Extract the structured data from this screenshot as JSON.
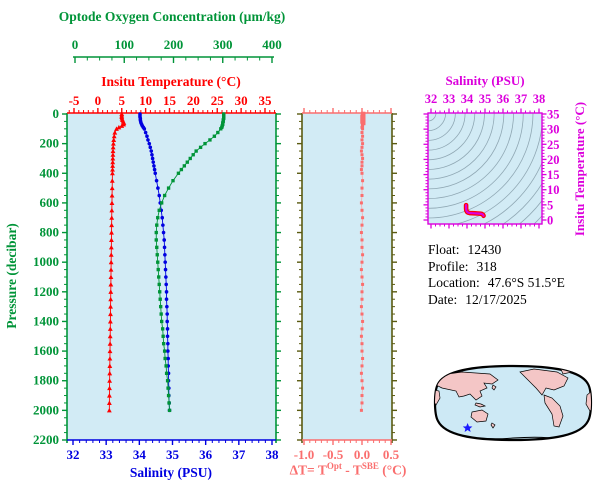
{
  "info": {
    "float_label": "Float:",
    "float_value": "12430",
    "profile_label": "Profile:",
    "profile_value": "318",
    "location_label": "Location:",
    "location_value": "47.6°S  51.5°E",
    "date_label": "Date:",
    "date_value": "12/17/2025"
  },
  "colors": {
    "oxygen": "#009438",
    "temperature": "#FF0000",
    "salinity": "#0000E0",
    "pressure": "#009438",
    "delta": "#FA6E6E",
    "delta_line": "#FCA9A9",
    "olive": "#5A5A10",
    "magenta": "#DC00DC",
    "contour": "#90A8B4",
    "plot_bg": "#D2EBF5",
    "land": "#F4C6C6",
    "ocean": "#CDE9F5",
    "map_outline": "#000000",
    "star": "#1A1AFF",
    "info_text": "#000000"
  },
  "chart_data": [
    {
      "id": "profile-plot",
      "type": "line",
      "orientation": "depth-profile",
      "y_axis": {
        "label": "Pressure (decibar)",
        "range": [
          0,
          2200
        ],
        "major": 200,
        "minor": 50
      },
      "x_axes": [
        {
          "name": "oxygen",
          "label": "Optode Oxygen Concentration (µm/kg)",
          "range": [
            0,
            400
          ],
          "major": 100,
          "minor": 25
        },
        {
          "name": "temperature",
          "label": "Insitu Temperature (°C)",
          "range": [
            -5,
            35
          ],
          "major": 5,
          "minor": 1
        },
        {
          "name": "salinity",
          "label": "Salinity (PSU)",
          "range": [
            32,
            38
          ],
          "major": 1,
          "minor": 0.2
        }
      ],
      "pressure": [
        0,
        10,
        20,
        30,
        40,
        50,
        60,
        70,
        80,
        90,
        100,
        125,
        150,
        175,
        200,
        225,
        250,
        275,
        300,
        325,
        350,
        375,
        400,
        450,
        500,
        550,
        600,
        650,
        700,
        750,
        800,
        850,
        900,
        950,
        1000,
        1050,
        1100,
        1150,
        1200,
        1250,
        1300,
        1350,
        1400,
        1450,
        1500,
        1550,
        1600,
        1650,
        1700,
        1750,
        1800,
        1850,
        1900,
        1950,
        2000
      ],
      "series": [
        {
          "name": "temperature",
          "axis": "temperature",
          "marker": "triangle",
          "values": [
            5.0,
            5.0,
            5.0,
            5.05,
            5.15,
            5.3,
            5.45,
            5.4,
            5.0,
            4.4,
            3.9,
            3.55,
            3.42,
            3.32,
            3.25,
            3.2,
            3.17,
            3.15,
            3.13,
            3.11,
            3.09,
            3.07,
            3.05,
            3.02,
            3.0,
            2.97,
            2.95,
            2.92,
            2.9,
            2.88,
            2.86,
            2.84,
            2.82,
            2.8,
            2.78,
            2.76,
            2.74,
            2.72,
            2.7,
            2.68,
            2.66,
            2.64,
            2.62,
            2.6,
            2.58,
            2.56,
            2.54,
            2.52,
            2.5,
            2.48,
            2.46,
            2.44,
            2.42,
            2.41,
            2.4
          ]
        },
        {
          "name": "salinity",
          "axis": "salinity",
          "marker": "circle",
          "values": [
            34.02,
            34.02,
            34.02,
            34.03,
            34.03,
            34.04,
            34.05,
            34.07,
            34.09,
            34.12,
            34.15,
            34.19,
            34.23,
            34.26,
            34.3,
            34.33,
            34.36,
            34.38,
            34.4,
            34.42,
            34.44,
            34.46,
            34.48,
            34.52,
            34.56,
            34.6,
            34.63,
            34.66,
            34.69,
            34.71,
            34.73,
            34.75,
            34.76,
            34.77,
            34.78,
            34.79,
            34.8,
            34.81,
            34.82,
            34.82,
            34.83,
            34.84,
            34.84,
            34.85,
            34.85,
            34.86,
            34.86,
            34.87,
            34.87,
            34.88,
            34.88,
            34.89,
            34.89,
            34.9,
            34.91
          ]
        },
        {
          "name": "oxygen",
          "axis": "oxygen",
          "marker": "square",
          "values": [
            302,
            302,
            302,
            302,
            301,
            301,
            300,
            300,
            299,
            298,
            296,
            290,
            283,
            274,
            264,
            255,
            246,
            240,
            234,
            228,
            222,
            216,
            210,
            199,
            190,
            182,
            176,
            171,
            168,
            166,
            165,
            165,
            166,
            167,
            168,
            169,
            170,
            171,
            172,
            173,
            174,
            175,
            176,
            178,
            179,
            180,
            182,
            183,
            185,
            186,
            188,
            189,
            190,
            191,
            192
          ]
        }
      ]
    },
    {
      "id": "delta-t-plot",
      "type": "line",
      "orientation": "depth-profile",
      "x_axis": {
        "label_parts": {
          "prefix": "ΔT= T",
          "sup1": "Opt",
          "mid": " - T",
          "sup2": "SBE",
          "suffix": " (°C)"
        },
        "range": [
          -1.0,
          0.5
        ],
        "major": 0.5,
        "minor": 0.1
      },
      "y_axis": {
        "range": [
          0,
          2200
        ],
        "major": 200,
        "minor": 50
      },
      "pressure": [
        0,
        10,
        20,
        30,
        40,
        50,
        60,
        70,
        80,
        90,
        100,
        125,
        150,
        175,
        200,
        225,
        250,
        275,
        300,
        325,
        350,
        375,
        400,
        450,
        500,
        550,
        600,
        650,
        700,
        750,
        800,
        850,
        900,
        950,
        1000,
        1050,
        1100,
        1150,
        1200,
        1250,
        1300,
        1350,
        1400,
        1450,
        1500,
        1550,
        1600,
        1650,
        1700,
        1750,
        1800,
        1850,
        1900,
        1950,
        2000
      ],
      "series": [
        {
          "name": "delta-t",
          "marker": "square",
          "values": [
            0.02,
            0.02,
            0.01,
            0.02,
            0.02,
            0.01,
            0.02,
            0.01,
            0.01,
            0.0,
            0.01,
            0.0,
            0.01,
            0.0,
            0.01,
            0.0,
            -0.01,
            0.0,
            0.01,
            0.0,
            0.0,
            -0.01,
            0.0,
            0.01,
            0.0,
            0.0,
            -0.01,
            0.0,
            0.01,
            0.0,
            -0.01,
            0.0,
            0.0,
            0.01,
            0.0,
            -0.01,
            0.0,
            0.01,
            0.0,
            0.0,
            -0.01,
            0.0,
            0.01,
            0.0,
            -0.01,
            0.0,
            0.0,
            0.01,
            0.0,
            -0.01,
            0.0,
            0.01,
            0.0,
            0.0,
            -0.01
          ]
        }
      ]
    },
    {
      "id": "ts-diagram",
      "type": "scatter",
      "x_axis": {
        "label": "Salinity (PSU)",
        "range": [
          32,
          38
        ],
        "major": 1,
        "minor": 0.25
      },
      "y_axis": {
        "label": "Insitu Temperature (°C)",
        "range": [
          0,
          35
        ],
        "major": 5,
        "minor": 1
      },
      "contours": {
        "description": "density contour arcs",
        "count": 17,
        "first_radius": 8,
        "spacing": 9.7
      },
      "curve": {
        "salinity": [
          33.95,
          33.95,
          33.96,
          34.0,
          34.06,
          34.15,
          34.3,
          34.45,
          34.6,
          34.72,
          34.82,
          34.89,
          34.92
        ],
        "temperature": [
          4.9,
          3.9,
          3.2,
          2.7,
          2.45,
          2.3,
          2.25,
          2.2,
          2.15,
          2.1,
          2.0,
          1.75,
          1.4
        ]
      }
    },
    {
      "id": "locator-map",
      "type": "map",
      "projection": "robinson-pacific-centered",
      "star_position": {
        "x_frac": 0.22,
        "y_frac": 0.82
      }
    }
  ]
}
